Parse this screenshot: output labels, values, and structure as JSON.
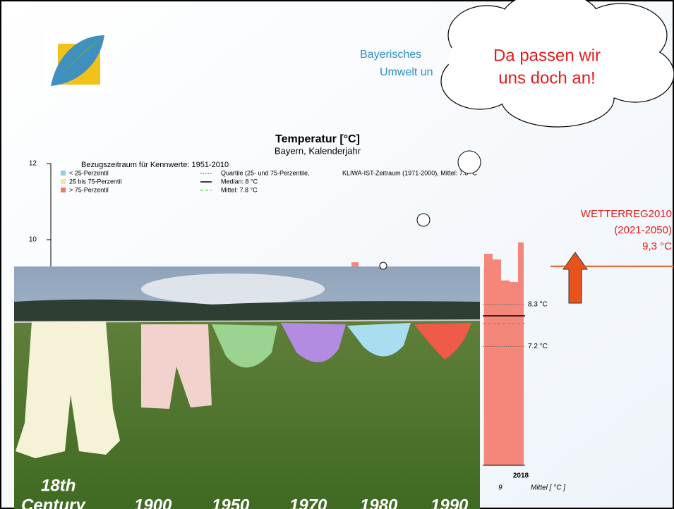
{
  "header": {
    "org_line1": "Bayerisches",
    "org_line2": "Umwelt un"
  },
  "callout": {
    "line1": "Da passen wir",
    "line2": "uns doch an!"
  },
  "chart_data": {
    "type": "bar",
    "title": "Temperatur [°C]",
    "subtitle": "Bayern, Kalenderjahr",
    "reference_period": "Bezugszeitraum für Kennwerte: 1951-2010",
    "legend": [
      {
        "name": "< 25-Perzentil",
        "color": "#8ecfe0"
      },
      {
        "name": "25 bis 75-Perzentil",
        "color": "#efe6a2"
      },
      {
        "name": "> 75-Perzentil",
        "color": "#f07a6a"
      }
    ],
    "legend_lines": [
      "Quartile (25- und 75-Perzentile,",
      "KLIWA-IST-Zeitraum (1971-2000), Mittel: 7.8 °C",
      "Median: 8 °C",
      "Mittel: 7.8 °C"
    ],
    "ylim": [
      4,
      12
    ],
    "yticks": [
      10,
      12
    ],
    "categories": [
      null,
      null,
      null,
      null,
      "2018"
    ],
    "values": [
      9.63,
      9.48,
      8.93,
      8.89,
      9.93
    ],
    "color": "#f4877a",
    "median": 8,
    "mean": 7.8,
    "reference_lines": [
      {
        "value": 8.3,
        "label": "8.3 °C"
      },
      {
        "value": 7.2,
        "label": "7.2 °C"
      }
    ],
    "x_fragment": "9",
    "x_axis_label": "Mittel [ °C ]",
    "projection": {
      "name": "WETTERREG2010",
      "period": "(2021-2050)",
      "value": 9.3,
      "label": "9,3 °C"
    }
  },
  "photo_caption": [
    "18th",
    "Century",
    "1900",
    "1950",
    "1970",
    "1980",
    "1990"
  ]
}
